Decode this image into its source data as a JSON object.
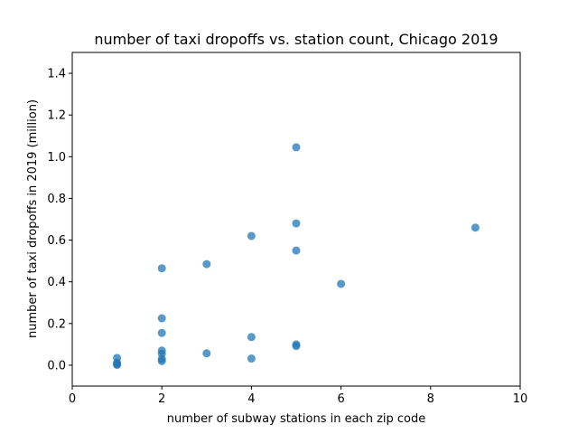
{
  "chart_data": {
    "type": "scatter",
    "title": "number of taxi dropoffs vs. station count, Chicago 2019",
    "xlabel": "number of subway stations in each zip code",
    "ylabel": "number of taxi dropoffs in 2019 (million)",
    "xlim": [
      0,
      10
    ],
    "ylim": [
      -0.1,
      1.5
    ],
    "xticks": [
      0,
      2,
      4,
      6,
      8,
      10
    ],
    "xtick_labels": [
      "0",
      "2",
      "4",
      "6",
      "8",
      "10"
    ],
    "yticks": [
      0.0,
      0.2,
      0.4,
      0.6,
      0.8,
      1.0,
      1.2,
      1.4
    ],
    "ytick_labels": [
      "0.0",
      "0.2",
      "0.4",
      "0.6",
      "0.8",
      "1.0",
      "1.2",
      "1.4"
    ],
    "grid": false,
    "marker_color": "#1f77b4",
    "points": [
      {
        "x": 1,
        "y": 0.035
      },
      {
        "x": 1,
        "y": 0.012
      },
      {
        "x": 1,
        "y": 0.005
      },
      {
        "x": 1,
        "y": 0.002
      },
      {
        "x": 2,
        "y": 0.465
      },
      {
        "x": 2,
        "y": 0.225
      },
      {
        "x": 2,
        "y": 0.155
      },
      {
        "x": 2,
        "y": 0.07
      },
      {
        "x": 2,
        "y": 0.055
      },
      {
        "x": 2,
        "y": 0.03
      },
      {
        "x": 2,
        "y": 0.02
      },
      {
        "x": 3,
        "y": 0.485
      },
      {
        "x": 3,
        "y": 0.057
      },
      {
        "x": 4,
        "y": 0.62
      },
      {
        "x": 4,
        "y": 0.135
      },
      {
        "x": 4,
        "y": 0.032
      },
      {
        "x": 5,
        "y": 1.045
      },
      {
        "x": 5,
        "y": 0.68
      },
      {
        "x": 5,
        "y": 0.55
      },
      {
        "x": 5,
        "y": 0.1
      },
      {
        "x": 5,
        "y": 0.092
      },
      {
        "x": 6,
        "y": 0.39
      },
      {
        "x": 9,
        "y": 0.66
      }
    ]
  }
}
